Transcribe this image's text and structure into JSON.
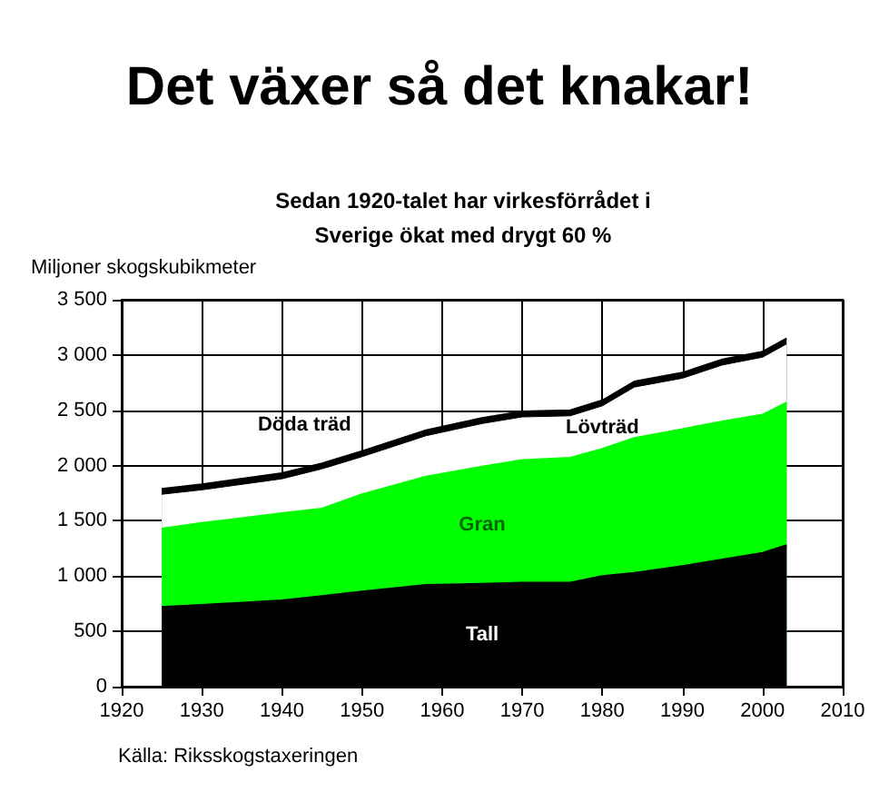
{
  "chart_data": {
    "type": "area",
    "stacked": true,
    "title": "Det växer så det knakar!",
    "subtitle": "Sedan 1920-talet har virkesförrådet i\nSverige ökat med drygt 60 %",
    "ylabel": "Miljoner skogskubikmeter",
    "annotations": [
      "Källa: Riksskogstaxeringen"
    ],
    "x": [
      1925,
      1930,
      1940,
      1945,
      1950,
      1958,
      1965,
      1970,
      1976,
      1980,
      1984,
      1990,
      1995,
      2000,
      2003
    ],
    "series": [
      {
        "name": "Tall",
        "color": "#000000",
        "values": [
          720,
          740,
          780,
          820,
          860,
          920,
          930,
          940,
          940,
          1000,
          1030,
          1090,
          1150,
          1210,
          1280
        ]
      },
      {
        "name": "Gran",
        "color": "#00ff00",
        "values": [
          710,
          740,
          790,
          790,
          880,
          980,
          1060,
          1110,
          1130,
          1150,
          1220,
          1240,
          1250,
          1250,
          1290
        ]
      },
      {
        "name": "Lövträd",
        "color": "#ffffff",
        "values": [
          310,
          300,
          310,
          360,
          340,
          370,
          390,
          390,
          380,
          390,
          460,
          460,
          510,
          520,
          530
        ]
      },
      {
        "name": "Döda träd",
        "color": "#000000",
        "values": [
          50,
          50,
          50,
          50,
          50,
          50,
          50,
          50,
          50,
          50,
          50,
          50,
          50,
          50,
          50
        ]
      }
    ],
    "xlim": [
      1920,
      2010
    ],
    "xticks": [
      1920,
      1930,
      1940,
      1950,
      1960,
      1970,
      1980,
      1990,
      2000,
      2010
    ],
    "ylim": [
      0,
      3500
    ],
    "yticks": [
      0,
      500,
      {
        "value": 1000,
        "label": "1 000"
      },
      {
        "value": 1500,
        "label": "1 500"
      },
      {
        "value": 2000,
        "label": "2 000"
      },
      {
        "value": 2500,
        "label": "2 500"
      },
      {
        "value": 3000,
        "label": "3 000"
      },
      {
        "value": 3500,
        "label": "3 500"
      }
    ],
    "grid": true,
    "legend": false
  }
}
